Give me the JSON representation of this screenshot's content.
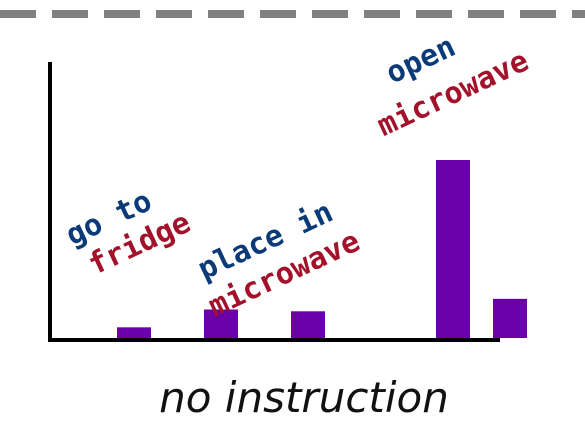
{
  "chart_data": {
    "type": "bar",
    "xlabel": "no instruction",
    "ylabel": "",
    "title": "",
    "ylim": [
      0,
      1
    ],
    "grid": false,
    "bar_color": "#6a00a8",
    "values": [
      0.06,
      0.16,
      0.15,
      1.0,
      0.22
    ],
    "annotations": [
      {
        "lines": [
          "go to",
          "fridge"
        ],
        "colors": [
          "#0b3a78",
          "#a3122a"
        ]
      },
      {
        "lines": [
          "place in",
          "microwave"
        ],
        "colors": [
          "#0b3a78",
          "#a3122a"
        ]
      },
      {
        "lines": [
          "open",
          "microwave"
        ],
        "colors": [
          "#0b3a78",
          "#a3122a"
        ]
      }
    ]
  }
}
